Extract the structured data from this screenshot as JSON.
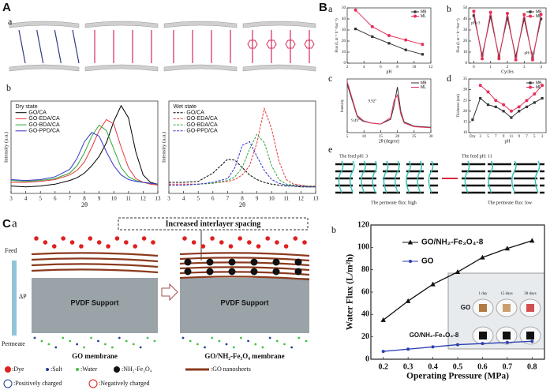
{
  "panels": {
    "A": "A",
    "Aa": "a",
    "Ab": "b",
    "B": "B",
    "Ba": "a",
    "Bb": "b",
    "Bc": "c",
    "Bd": "d",
    "Be": "e",
    "C": "C",
    "Ca": "a",
    "Cb": "b"
  },
  "panel_e": {
    "feed_left": "The feed pH: 3",
    "feed_right": "The feed pH: 11",
    "flux_left": "The permeate flux: high",
    "flux_right": "The permeate flux: low"
  },
  "panel_ca": {
    "banner": "Increased interlayer spacing",
    "feed": "Feed",
    "pressure": "ΔP",
    "permeate": "Permeate",
    "support_left": "PVDF  Support",
    "support_right": "PVDF  Support",
    "caption_left": "GO membrane",
    "caption_right": "GO/NH₂-Fe₃O₄ membrane",
    "legend": [
      ":Dye",
      ":Salt",
      ":Water",
      ":NH₂-Fe₃O₄",
      ":GO nanosheets",
      ":Positively charged",
      ":Negatively charged"
    ]
  },
  "panel_cb_inset": {
    "days": [
      "1 day",
      "15 days",
      "30 days"
    ],
    "rows": [
      "GO",
      "GO/NH₂-Fe₃O₄-8"
    ]
  },
  "chart_data": [
    {
      "type": "line",
      "legend_title": "Dry state",
      "legend": "upper left",
      "xlabel": "2θ",
      "ylabel": "Intensity (a.u.)",
      "x": [
        3,
        4,
        5,
        6,
        7,
        7.5,
        8,
        8.5,
        9,
        9.5,
        10,
        10.5,
        11,
        11.5,
        12,
        12.5,
        13
      ],
      "xlim": [
        3,
        13
      ],
      "xticks": [
        3,
        4,
        5,
        6,
        7,
        8,
        9,
        10,
        11,
        12,
        13
      ],
      "ylim": [
        0,
        100
      ],
      "series": [
        {
          "name": "GO/CA",
          "color": "#000000",
          "values": [
            8,
            7,
            8,
            10,
            14,
            17,
            22,
            30,
            40,
            55,
            78,
            95,
            82,
            45,
            20,
            12,
            10
          ]
        },
        {
          "name": "GO-EDA/CA",
          "color": "#e8383d",
          "values": [
            12,
            12,
            13,
            15,
            20,
            25,
            34,
            50,
            68,
            80,
            75,
            50,
            28,
            16,
            12,
            10,
            9
          ]
        },
        {
          "name": "GO-BDA/CA",
          "color": "#2fa83a",
          "values": [
            14,
            13,
            14,
            16,
            22,
            30,
            44,
            62,
            74,
            68,
            48,
            28,
            18,
            14,
            12,
            11,
            10
          ]
        },
        {
          "name": "GO-PPD/CA",
          "color": "#3434c8",
          "values": [
            15,
            14,
            15,
            18,
            26,
            38,
            56,
            66,
            62,
            45,
            30,
            20,
            15,
            13,
            12,
            11,
            10
          ]
        }
      ]
    },
    {
      "type": "line",
      "legend_title": "Wet state",
      "legend": "upper left",
      "dashed": true,
      "xlabel": "2θ",
      "ylabel": "Intensity (a.u.)",
      "x": [
        3,
        4,
        5,
        6,
        7,
        7.5,
        8,
        8.5,
        9,
        9.5,
        10,
        10.5,
        11,
        11.5,
        12,
        12.5,
        13
      ],
      "xlim": [
        3,
        13
      ],
      "xticks": [
        3,
        4,
        5,
        6,
        7,
        8,
        9,
        10,
        11,
        12,
        13
      ],
      "ylim": [
        0,
        100
      ],
      "series": [
        {
          "name": "GO/CA",
          "color": "#000000",
          "values": [
            12,
            12,
            13,
            22,
            37,
            36,
            28,
            20,
            15,
            12,
            10,
            9,
            8,
            8,
            7,
            7,
            7
          ]
        },
        {
          "name": "GO-EDA/CA",
          "color": "#e8383d",
          "values": [
            10,
            10,
            10,
            11,
            13,
            15,
            20,
            30,
            55,
            92,
            70,
            35,
            15,
            10,
            9,
            8,
            8
          ]
        },
        {
          "name": "GO-BDA/CA",
          "color": "#2fa83a",
          "values": [
            9,
            9,
            10,
            11,
            14,
            18,
            28,
            48,
            64,
            55,
            30,
            15,
            10,
            9,
            8,
            8,
            7
          ]
        },
        {
          "name": "GO-PPD/CA",
          "color": "#3434c8",
          "values": [
            9,
            9,
            10,
            12,
            16,
            28,
            52,
            56,
            40,
            25,
            15,
            11,
            9,
            8,
            8,
            7,
            7
          ]
        }
      ]
    },
    {
      "type": "line",
      "legend": "upper right",
      "xlabel": "pH",
      "ylabel": "Flux (L m⁻² h⁻¹ bar⁻¹)",
      "x": [
        3,
        5,
        7,
        9,
        11
      ],
      "xlim": [
        2,
        12
      ],
      "xticks": [
        2,
        4,
        6,
        8,
        10,
        12
      ],
      "ylim": [
        0,
        50
      ],
      "yticks": [
        0,
        10,
        20,
        30,
        40,
        50
      ],
      "series": [
        {
          "name": "MB",
          "color": "#333333",
          "marker": "square",
          "values": [
            31,
            24,
            18,
            12,
            8
          ]
        },
        {
          "name": "ML",
          "color": "#e8305a",
          "marker": "circle",
          "values": [
            48,
            33,
            25,
            21,
            17
          ]
        }
      ]
    },
    {
      "type": "line",
      "legend": "upper right",
      "xlabel": "Cycles",
      "ylabel": "Flux (L m⁻² h⁻¹ bar⁻¹)",
      "annotations": [
        "pH=3",
        "pH=11"
      ],
      "x": [
        0,
        0.5,
        1,
        1.5,
        2,
        2.5,
        3,
        3.5,
        4
      ],
      "xlim": [
        -0.3,
        4.3
      ],
      "xticks": [
        0,
        1,
        2,
        3,
        4
      ],
      "ylim": [
        0,
        50
      ],
      "yticks": [
        0,
        10,
        20,
        30,
        40,
        50
      ],
      "series": [
        {
          "name": "MB",
          "color": "#333333",
          "marker": "square",
          "values": [
            43,
            7,
            42,
            6,
            41,
            6,
            40,
            5,
            40
          ]
        },
        {
          "name": "ML",
          "color": "#e8305a",
          "marker": "circle",
          "values": [
            47,
            4,
            46,
            4,
            45,
            3,
            44,
            3,
            44
          ]
        }
      ]
    },
    {
      "type": "line",
      "legend": "upper right",
      "xlabel": "2θ (degree)",
      "ylabel": "Intensity",
      "annotations": [
        "9.92°",
        "9.49°"
      ],
      "x": [
        5,
        8,
        9.5,
        10,
        12,
        15,
        18,
        19,
        20,
        21,
        22,
        25,
        30
      ],
      "xlim": [
        5,
        30
      ],
      "xticks": [
        5,
        10,
        15,
        20,
        25,
        30
      ],
      "ylim": [
        0,
        100
      ],
      "series": [
        {
          "name": "MB",
          "color": "#333333",
          "values": [
            90,
            30,
            22,
            21,
            18,
            16,
            25,
            50,
            85,
            40,
            20,
            12,
            10
          ]
        },
        {
          "name": "ML",
          "color": "#e8305a",
          "values": [
            95,
            32,
            24,
            22,
            18,
            16,
            28,
            60,
            70,
            35,
            18,
            11,
            9
          ]
        }
      ]
    },
    {
      "type": "line",
      "legend": "upper right",
      "xlabel": "pH",
      "ylabel": "Thickness (nm)",
      "categories": [
        "Dry",
        "3",
        "5",
        "7",
        "9",
        "11",
        "9",
        "7",
        "5",
        "3"
      ],
      "ylim": [
        10,
        35
      ],
      "yticks": [
        10,
        15,
        20,
        25,
        30,
        35
      ],
      "series": [
        {
          "name": "MB",
          "color": "#333333",
          "marker": "square",
          "values": [
            16,
            26,
            23,
            22,
            20,
            17,
            20,
            22,
            24,
            26
          ]
        },
        {
          "name": "ML",
          "color": "#e8305a",
          "marker": "circle",
          "values": [
            null,
            32,
            29,
            25,
            23,
            20,
            22,
            25,
            28,
            32
          ]
        }
      ]
    },
    {
      "type": "line",
      "legend": "upper left",
      "xlabel": "Operating Pressure (MPa)",
      "ylabel": "Water Flux (L/m²h)",
      "x": [
        0.2,
        0.3,
        0.4,
        0.5,
        0.6,
        0.7,
        0.8
      ],
      "xlim": [
        0.15,
        0.85
      ],
      "xticks": [
        0.2,
        0.3,
        0.4,
        0.5,
        0.6,
        0.7,
        0.8
      ],
      "ylim": [
        0,
        120
      ],
      "yticks": [
        0,
        20,
        40,
        60,
        80,
        100,
        120
      ],
      "series": [
        {
          "name": "GO/NH₂-Fe₃O₄-8",
          "color": "#111111",
          "marker": "triangle",
          "values": [
            35,
            52,
            67,
            78,
            91,
            99,
            106
          ]
        },
        {
          "name": "GO",
          "color": "#2a3fb0",
          "marker": "circle",
          "values": [
            7,
            9,
            11,
            13,
            14,
            15,
            16
          ]
        }
      ]
    }
  ]
}
